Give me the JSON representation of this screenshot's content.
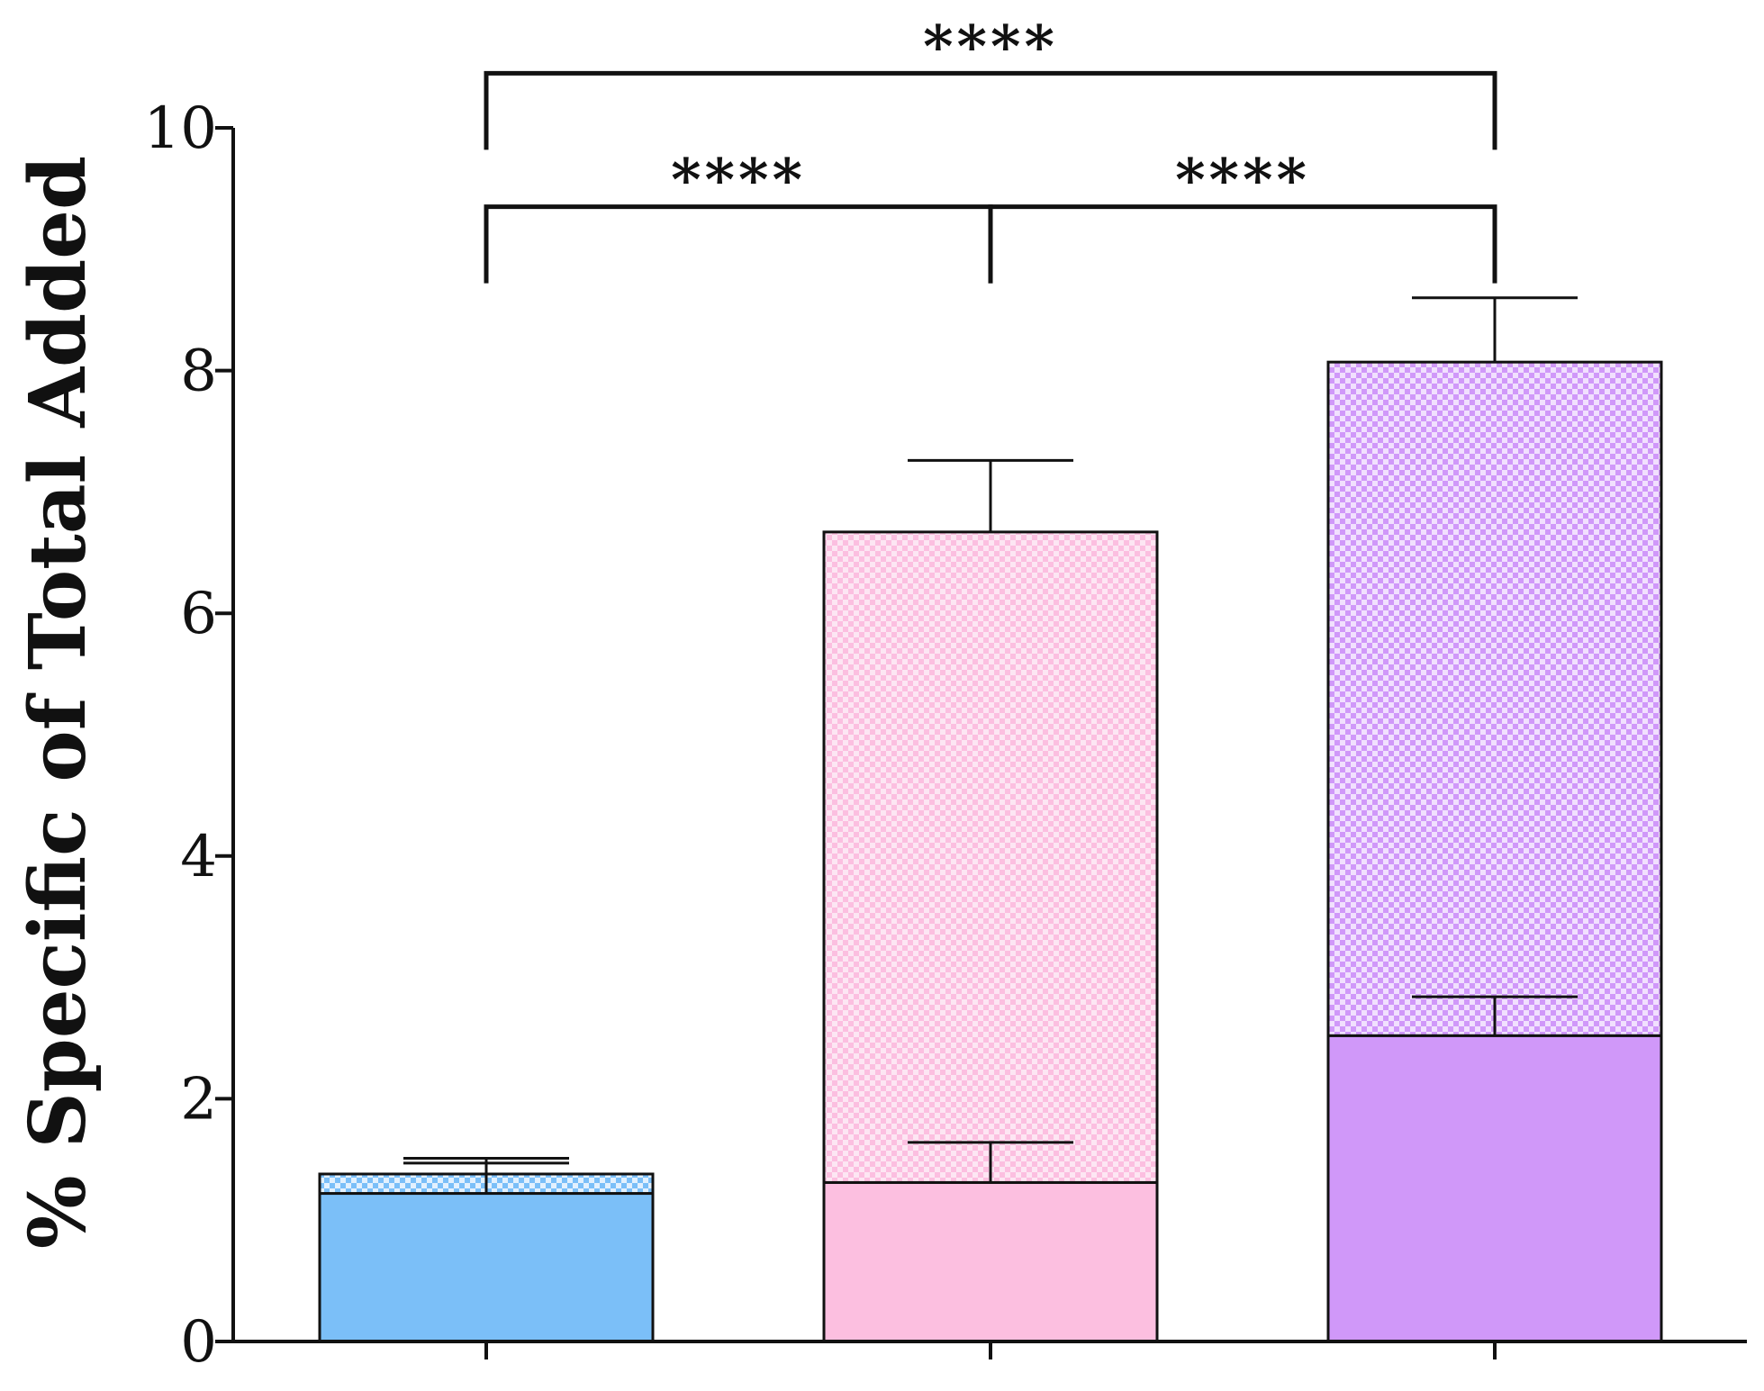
{
  "chart_data": {
    "type": "bar",
    "stacked": true,
    "title": "",
    "xlabel": "",
    "ylabel": "% Specific of Total Added",
    "ylim": [
      0,
      10
    ],
    "yticks": [
      0,
      2,
      4,
      6,
      8,
      10
    ],
    "grid": false,
    "legend": "none",
    "categories": [
      "",
      "",
      ""
    ],
    "series": [
      {
        "pattern": "solid",
        "values": [
          1.22,
          1.31,
          2.52
        ],
        "error_upper": [
          1.47,
          1.64,
          2.84
        ]
      },
      {
        "pattern": "checkered",
        "values": [
          0.16,
          5.36,
          5.55
        ],
        "error_upper": [
          1.51,
          7.26,
          8.6
        ]
      }
    ],
    "totals": [
      1.38,
      6.67,
      8.07
    ],
    "colors": {
      "solid": [
        "#7bbff8",
        "#fcbfe0",
        "#d098f9"
      ],
      "check_light": [
        "#e3f1fe",
        "#fde6f3",
        "#f1e0fe"
      ]
    },
    "significance": [
      {
        "from": 0,
        "to": 2,
        "y": 10.45,
        "label": "****"
      },
      {
        "from": 0,
        "to": 1,
        "y": 9.35,
        "label": "****"
      },
      {
        "from": 1,
        "to": 2,
        "y": 9.35,
        "label": "****"
      }
    ]
  }
}
